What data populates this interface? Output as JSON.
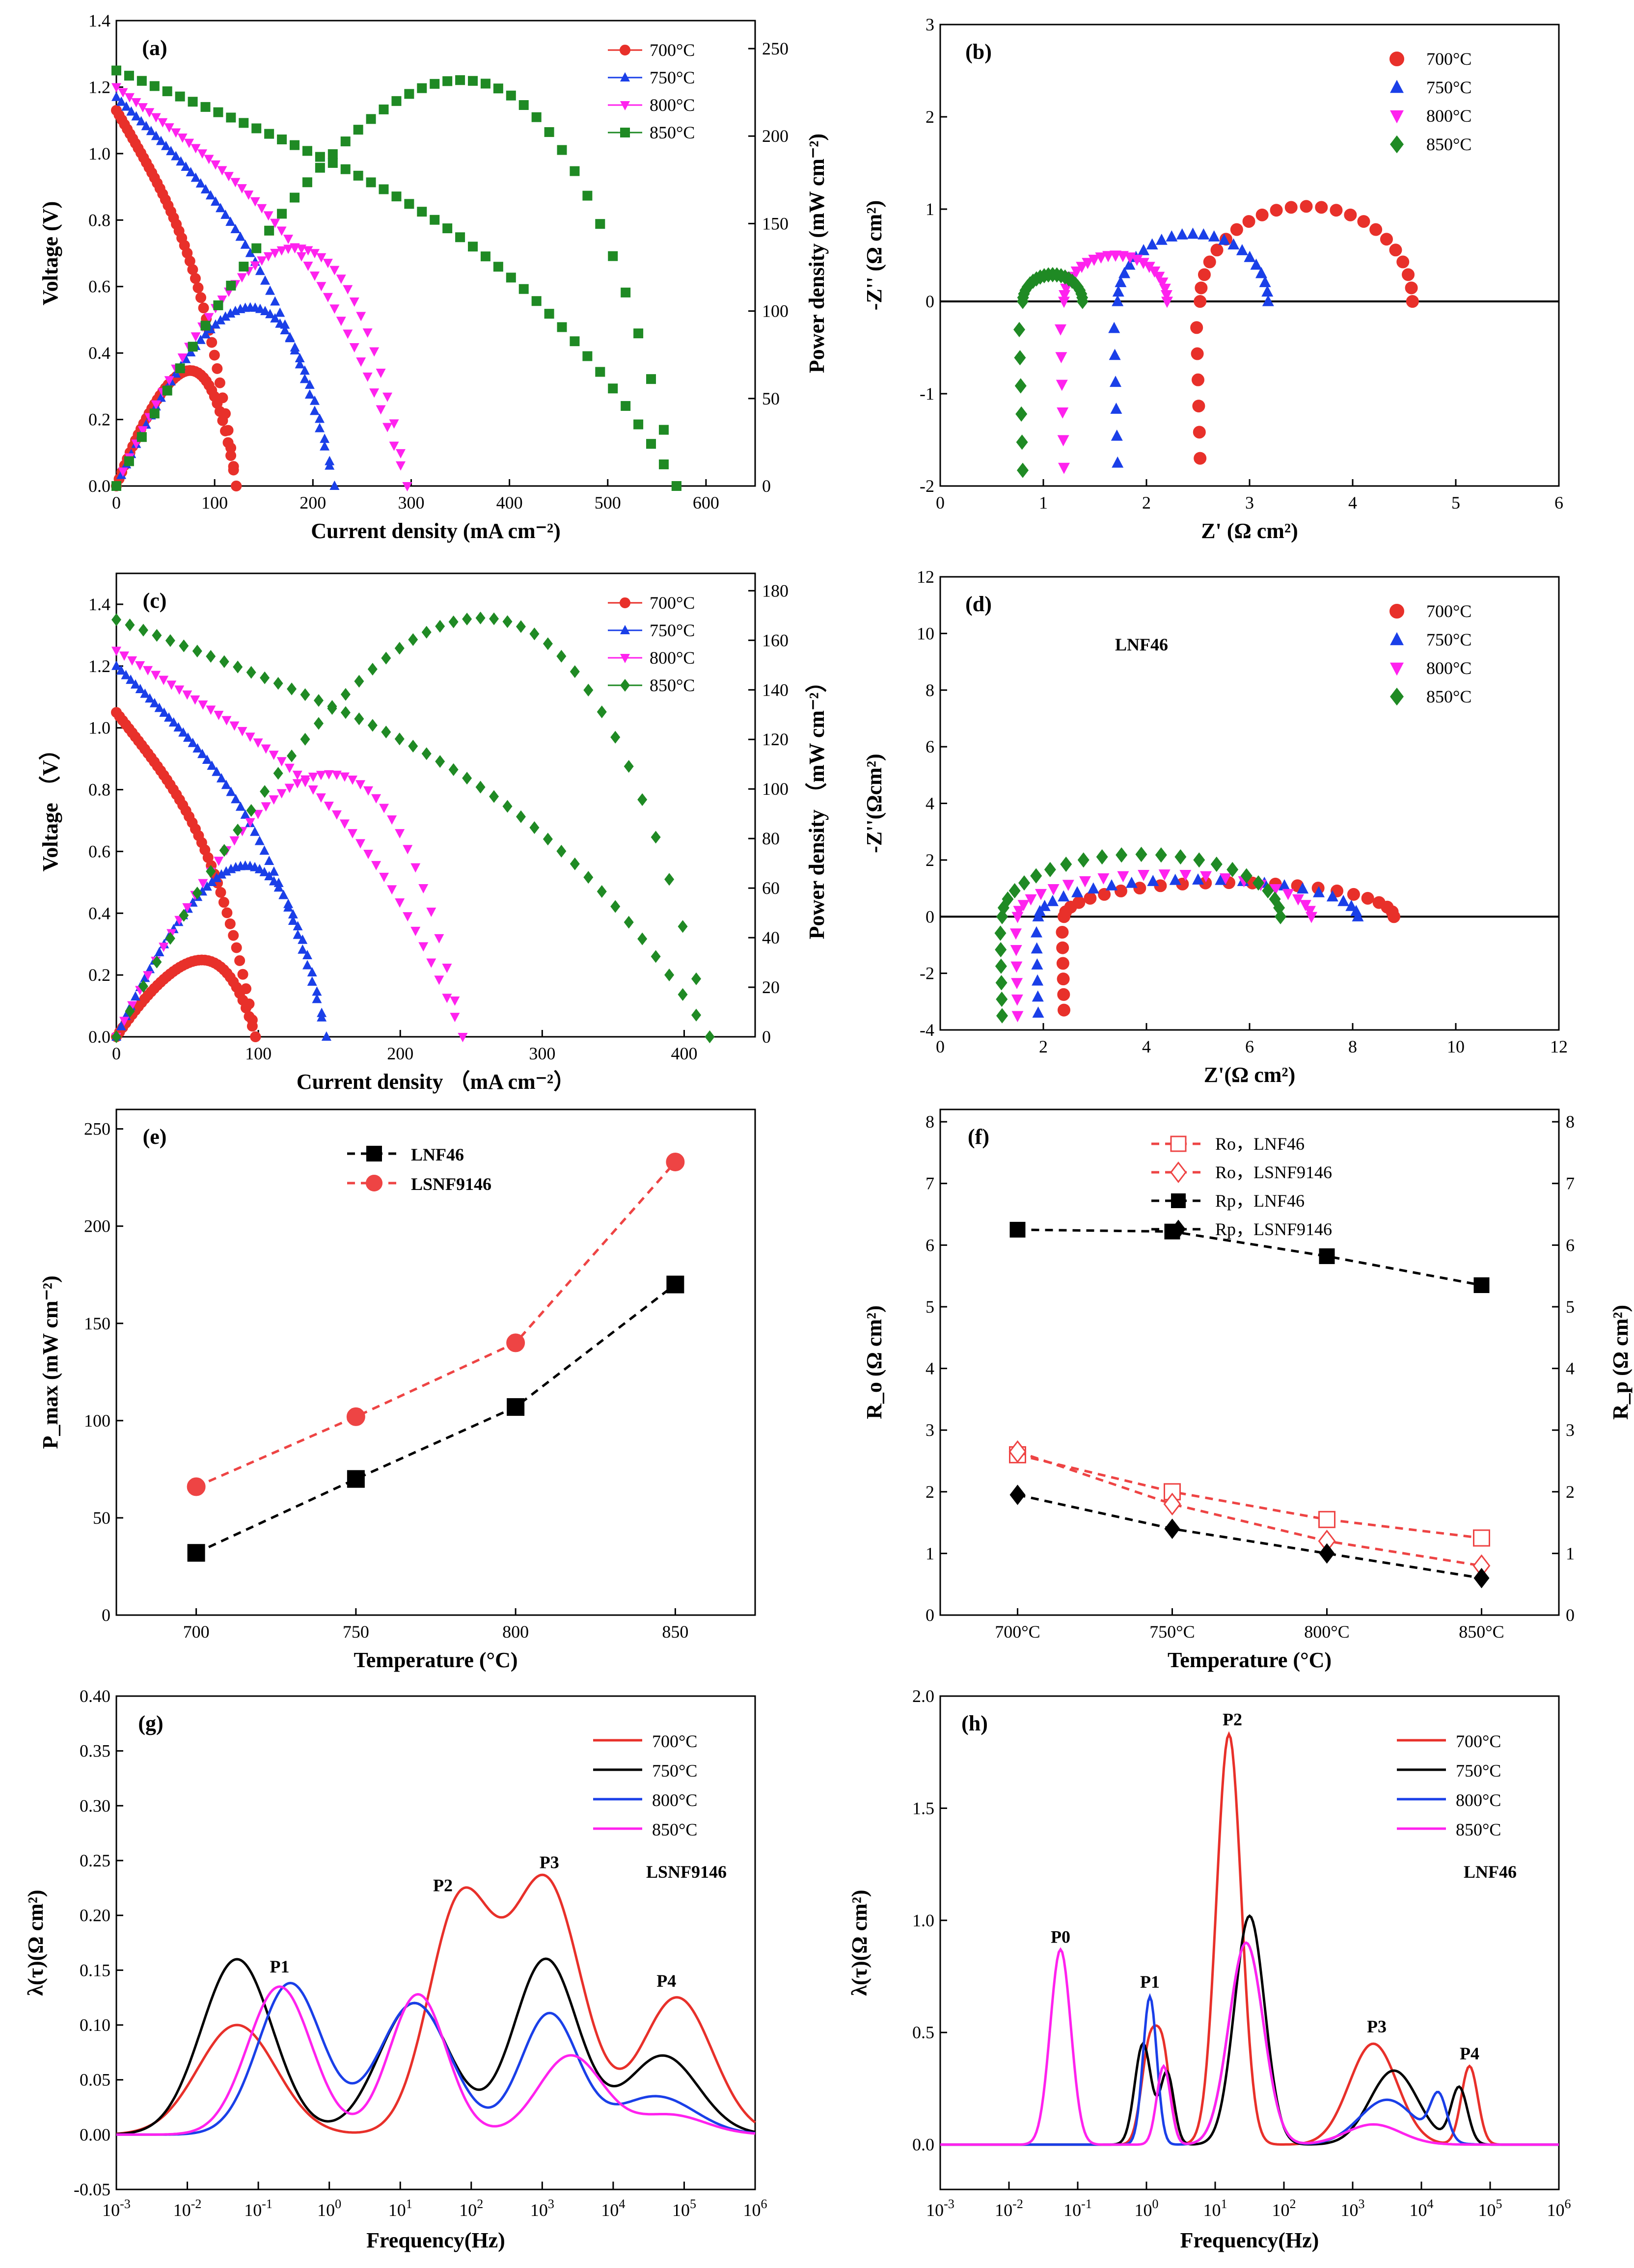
{
  "palette": {
    "t700": "#e8302a",
    "t750": "#1a3fe8",
    "t800": "#ff22ee",
    "t850": "#1f8a24",
    "black": "#000000",
    "red_dash": "#ee4444"
  },
  "chart_data": [
    {
      "id": "a",
      "type": "line",
      "panel_label": "(a)",
      "xlabel": "Current density (mA cm⁻²)",
      "ylabel": "Voltage (V)",
      "ylabel2": "Power density (mW cm⁻²)",
      "xlim": [
        0,
        650
      ],
      "ylim": [
        0,
        1.4
      ],
      "y2lim": [
        0,
        266
      ],
      "xticks": [
        0,
        100,
        200,
        300,
        400,
        500,
        600
      ],
      "yticks": [
        0.0,
        0.2,
        0.4,
        0.6,
        0.8,
        1.0,
        1.2,
        1.4
      ],
      "y2ticks": [
        0,
        50,
        100,
        150,
        200,
        250
      ],
      "legend": [
        "700°C",
        "750°C",
        "800°C",
        "850°C"
      ],
      "series": [
        {
          "name": "700°C",
          "color": "t700",
          "marker": "circle",
          "Voc": 1.13,
          "Imax": 122,
          "Pmax": 66
        },
        {
          "name": "750°C",
          "color": "t750",
          "marker": "tri-up",
          "Voc": 1.17,
          "Imax": 222,
          "Pmax": 102
        },
        {
          "name": "800°C",
          "color": "t800",
          "marker": "tri-down",
          "Voc": 1.2,
          "Imax": 296,
          "Pmax": 136
        },
        {
          "name": "850°C",
          "color": "t850",
          "marker": "square",
          "Voc": 1.25,
          "Imax": 570,
          "Pmax": 232
        }
      ]
    },
    {
      "id": "b",
      "type": "scatter",
      "panel_label": "(b)",
      "xlabel": "Z' (Ω cm²)",
      "ylabel": "-Z'' (Ω cm²)",
      "xlim": [
        0,
        6
      ],
      "ylim": [
        -2,
        3
      ],
      "xticks": [
        0,
        1,
        2,
        3,
        4,
        5,
        6
      ],
      "yticks": [
        -2,
        -1,
        0,
        1,
        2,
        3
      ],
      "legend": [
        "700°C",
        "750°C",
        "800°C",
        "850°C"
      ],
      "series": [
        {
          "name": "700°C",
          "color": "t700",
          "marker": "circle",
          "Ro": 2.52,
          "Rp": 2.06,
          "tail": -1.7
        },
        {
          "name": "750°C",
          "color": "t750",
          "marker": "tri-up",
          "Ro": 1.72,
          "Rp": 1.46,
          "tail": -1.75
        },
        {
          "name": "800°C",
          "color": "t800",
          "marker": "tri-down",
          "Ro": 1.2,
          "Rp": 1.0,
          "tail": -1.8
        },
        {
          "name": "850°C",
          "color": "t850",
          "marker": "diamond",
          "Ro": 0.8,
          "Rp": 0.58,
          "tail": -1.83
        }
      ]
    },
    {
      "id": "c",
      "type": "line",
      "panel_label": "(c)",
      "xlabel": "Current density （mA cm⁻²）",
      "ylabel": "Voltage （V）",
      "ylabel2": "Power density （mW cm⁻²）",
      "xlim": [
        0,
        450
      ],
      "ylim": [
        0,
        1.5
      ],
      "y2lim": [
        0,
        187
      ],
      "xticks": [
        0,
        100,
        200,
        300,
        400
      ],
      "yticks": [
        0.0,
        0.2,
        0.4,
        0.6,
        0.8,
        1.0,
        1.2,
        1.4
      ],
      "y2ticks": [
        0,
        20,
        40,
        60,
        80,
        100,
        120,
        140,
        160,
        180
      ],
      "legend": [
        "700°C",
        "750°C",
        "800°C",
        "850°C"
      ],
      "series": [
        {
          "name": "700°C",
          "color": "t700",
          "marker": "circle",
          "Voc": 1.05,
          "Imax": 98,
          "Pmax": 31
        },
        {
          "name": "750°C",
          "color": "t750",
          "marker": "tri-up",
          "Voc": 1.2,
          "Imax": 148,
          "Pmax": 69
        },
        {
          "name": "800°C",
          "color": "t800",
          "marker": "tri-down",
          "Voc": 1.25,
          "Imax": 244,
          "Pmax": 106
        },
        {
          "name": "850°C",
          "color": "t850",
          "marker": "diamond",
          "Voc": 1.35,
          "Imax": 418,
          "Pmax": 169
        }
      ]
    },
    {
      "id": "d",
      "type": "scatter",
      "panel_label": "(d)",
      "annotation": "LNF46",
      "xlabel": "Z'(Ω cm²)",
      "ylabel": "-Z''(Ωcm²)",
      "xlim": [
        0,
        12
      ],
      "ylim": [
        -4,
        12
      ],
      "xticks": [
        0,
        2,
        4,
        6,
        8,
        10,
        12
      ],
      "yticks": [
        -4,
        -2,
        0,
        2,
        4,
        6,
        8,
        10,
        12
      ],
      "legend": [
        "700°C",
        "750°C",
        "800°C",
        "850°C"
      ],
      "series": [
        {
          "name": "700°C",
          "color": "t700",
          "marker": "circle",
          "Ro": 2.4,
          "Rp": 6.4,
          "peak": 1.2,
          "tail": -3.3
        },
        {
          "name": "750°C",
          "color": "t750",
          "marker": "tri-up",
          "Ro": 1.9,
          "Rp": 6.2,
          "peak": 1.3,
          "tail": -3.4
        },
        {
          "name": "800°C",
          "color": "t800",
          "marker": "tri-down",
          "Ro": 1.5,
          "Rp": 5.7,
          "peak": 1.5,
          "tail": -3.5
        },
        {
          "name": "850°C",
          "color": "t850",
          "marker": "diamond",
          "Ro": 1.2,
          "Rp": 5.4,
          "peak": 2.2,
          "tail": -3.5
        }
      ]
    },
    {
      "id": "e",
      "type": "line",
      "panel_label": "(e)",
      "xlabel": "Temperature (°C)",
      "ylabel": "P_max (mW cm⁻²)",
      "xlim": [
        675,
        875
      ],
      "ylim": [
        0,
        260
      ],
      "xticks": [
        700,
        750,
        800,
        850
      ],
      "yticks": [
        0,
        50,
        100,
        150,
        200,
        250
      ],
      "categories": [
        700,
        750,
        800,
        850
      ],
      "series": [
        {
          "name": "LNF46",
          "color": "black",
          "marker": "square",
          "values": [
            32,
            70,
            107,
            170
          ]
        },
        {
          "name": "LSNF9146",
          "color": "red_dash",
          "marker": "circle",
          "values": [
            66,
            102,
            140,
            233
          ]
        }
      ]
    },
    {
      "id": "f",
      "type": "line",
      "panel_label": "(f)",
      "xlabel": "Temperature (°C)",
      "ylabel": "R_o (Ω cm²)",
      "ylabel2": "R_p (Ω cm²)",
      "xlim": [
        675,
        875
      ],
      "ylim": [
        0,
        8.2
      ],
      "xticks": [
        700,
        750,
        800,
        850
      ],
      "xticklabels": [
        "700°C",
        "750°C",
        "800°C",
        "850°C"
      ],
      "yticks": [
        0,
        1,
        2,
        3,
        4,
        5,
        6,
        7,
        8
      ],
      "categories": [
        700,
        750,
        800,
        850
      ],
      "series": [
        {
          "name": "Ro，LNF46",
          "color": "red_dash",
          "marker": "square-open",
          "values": [
            2.6,
            2.0,
            1.55,
            1.25
          ]
        },
        {
          "name": "Ro，LSNF9146",
          "color": "red_dash",
          "marker": "diamond-open",
          "values": [
            2.65,
            1.8,
            1.2,
            0.8
          ]
        },
        {
          "name": "Rp，LNF46",
          "color": "black",
          "marker": "square",
          "values": [
            6.25,
            6.22,
            5.82,
            5.35
          ]
        },
        {
          "name": "Rp，LSNF9146",
          "color": "black",
          "marker": "diamond",
          "values": [
            1.95,
            1.4,
            1.0,
            0.6
          ]
        }
      ]
    },
    {
      "id": "g",
      "type": "line",
      "panel_label": "(g)",
      "annotation": "LSNF9146",
      "xlabel": "Frequency(Hz)",
      "ylabel": "λ(τ)(Ω cm²)",
      "xlim_log10": [
        -3,
        6
      ],
      "ylim": [
        -0.05,
        0.4
      ],
      "yticks": [
        -0.05,
        0.0,
        0.05,
        0.1,
        0.15,
        0.2,
        0.25,
        0.3,
        0.35,
        0.4
      ],
      "peak_labels": [
        {
          "text": "P1",
          "logf": -0.7,
          "y": 0.148
        },
        {
          "text": "P2",
          "logf": 1.6,
          "y": 0.222
        },
        {
          "text": "P3",
          "logf": 3.1,
          "y": 0.243
        },
        {
          "text": "P4",
          "logf": 4.75,
          "y": 0.135
        }
      ],
      "series": [
        {
          "name": "700°C",
          "color": "t700",
          "peaks": [
            [
              -1.3,
              0.1,
              0.55
            ],
            [
              1.85,
              0.21,
              0.45
            ],
            [
              3.05,
              0.23,
              0.5
            ],
            [
              4.9,
              0.125,
              0.5
            ]
          ]
        },
        {
          "name": "750°C",
          "color": "t750_black",
          "peaks": [
            [
              -1.3,
              0.16,
              0.5
            ],
            [
              1.2,
              0.12,
              0.5
            ],
            [
              3.05,
              0.16,
              0.45
            ],
            [
              4.7,
              0.072,
              0.5
            ]
          ]
        },
        {
          "name": "800°C",
          "color": "t800_blue",
          "peaks": [
            [
              -0.55,
              0.138,
              0.45
            ],
            [
              1.2,
              0.12,
              0.5
            ],
            [
              3.1,
              0.11,
              0.4
            ],
            [
              4.6,
              0.035,
              0.55
            ]
          ]
        },
        {
          "name": "850°C",
          "color": "t850_magenta",
          "peaks": [
            [
              -0.7,
              0.135,
              0.45
            ],
            [
              1.25,
              0.128,
              0.4
            ],
            [
              3.4,
              0.072,
              0.45
            ],
            [
              4.8,
              0.018,
              0.5
            ]
          ]
        }
      ]
    },
    {
      "id": "h",
      "type": "line",
      "panel_label": "(h)",
      "annotation": "LNF46",
      "xlabel": "Frequency(Hz)",
      "ylabel": "λ(τ)(Ω cm²)",
      "xlim_log10": [
        -3,
        6
      ],
      "ylim": [
        -0.2,
        2.0
      ],
      "yticks": [
        0.0,
        0.5,
        1.0,
        1.5,
        2.0
      ],
      "peak_labels": [
        {
          "text": "P0",
          "logf": -1.25,
          "y": 0.9
        },
        {
          "text": "P1",
          "logf": 0.05,
          "y": 0.7
        },
        {
          "text": "P2",
          "logf": 1.25,
          "y": 1.87
        },
        {
          "text": "P3",
          "logf": 3.35,
          "y": 0.5
        },
        {
          "text": "P4",
          "logf": 4.7,
          "y": 0.38
        }
      ],
      "series": [
        {
          "name": "700°C",
          "color": "t700",
          "peaks": [
            [
              0.05,
              0.45,
              0.12
            ],
            [
              0.25,
              0.35,
              0.1
            ],
            [
              1.2,
              1.83,
              0.18
            ],
            [
              3.3,
              0.45,
              0.35
            ],
            [
              4.7,
              0.35,
              0.12
            ]
          ]
        },
        {
          "name": "750°C",
          "color": "t750_black",
          "peaks": [
            [
              -0.05,
              0.45,
              0.12
            ],
            [
              0.3,
              0.32,
              0.1
            ],
            [
              1.5,
              1.02,
              0.22
            ],
            [
              3.6,
              0.33,
              0.35
            ],
            [
              4.55,
              0.25,
              0.12
            ]
          ]
        },
        {
          "name": "800°C",
          "color": "t800_blue",
          "peaks": [
            [
              0.05,
              0.66,
              0.1
            ],
            [
              1.45,
              0.9,
              0.25
            ],
            [
              3.5,
              0.2,
              0.4
            ],
            [
              4.25,
              0.2,
              0.12
            ]
          ]
        },
        {
          "name": "850°C",
          "color": "t850_magenta",
          "peaks": [
            [
              -1.25,
              0.87,
              0.15
            ],
            [
              0.25,
              0.35,
              0.1
            ],
            [
              1.45,
              0.9,
              0.25
            ],
            [
              3.3,
              0.09,
              0.4
            ]
          ]
        }
      ]
    }
  ]
}
